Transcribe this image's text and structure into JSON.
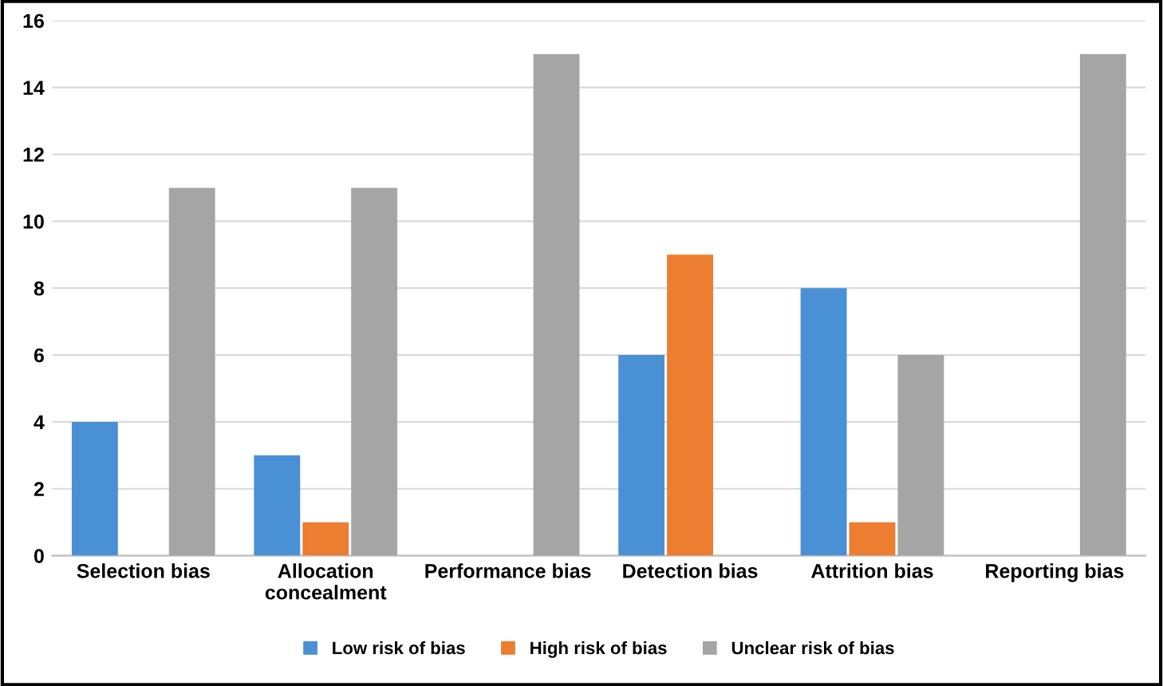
{
  "chart_data": {
    "type": "bar",
    "categories": [
      "Selection bias",
      "Allocation concealment",
      "Performance bias",
      "Detection bias",
      "Attrition bias",
      "Reporting bias"
    ],
    "series": [
      {
        "name": "Low risk of bias",
        "color": "#4a90d4",
        "values": [
          4,
          3,
          0,
          6,
          8,
          0
        ]
      },
      {
        "name": "High risk of bias",
        "color": "#ed7d31",
        "values": [
          0,
          1,
          0,
          9,
          1,
          0
        ]
      },
      {
        "name": "Unclear risk of bias",
        "color": "#a5a5a5",
        "values": [
          11,
          11,
          15,
          0,
          6,
          15
        ]
      }
    ],
    "ylim": [
      0,
      16
    ],
    "yticks": [
      0,
      2,
      4,
      6,
      8,
      10,
      12,
      14,
      16
    ],
    "grid": "y",
    "legend": "bottom"
  }
}
